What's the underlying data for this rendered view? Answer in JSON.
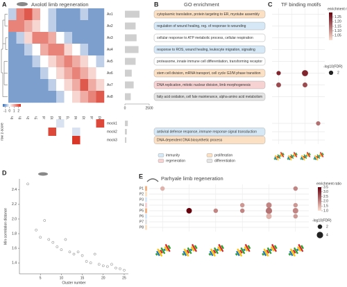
{
  "panels": [
    "A",
    "B",
    "C",
    "D",
    "E"
  ],
  "go_enrichment": {
    "title": "GO enrichment",
    "legend": [
      {
        "name": "immunity",
        "color": "#d6e8f5"
      },
      {
        "name": "proliferation",
        "color": "#fbe0c4"
      },
      {
        "name": "regeneration",
        "color": "#f6d2d2"
      },
      {
        "name": "differentiation",
        "color": "#e4e4e4"
      }
    ],
    "terms": [
      {
        "text": "cytoplasmic translation, protein targeting to ER, myotube assembly",
        "category": "proliferation"
      },
      {
        "text": "regulation of wound healing, reg. of response to wounding",
        "category": "immunity"
      },
      {
        "text": "cellular response to ATP metabolic process, cellular respiration",
        "category": null
      },
      {
        "text": "response to ROS, wound healing, leukocyte migration, signaling",
        "category": "immunity"
      },
      {
        "text": "proteasome, innate immune cell differentiation, transforming receptor",
        "category": null
      },
      {
        "text": "stem cell division, mRNA transport, cell cycle G2/M phase transition",
        "category": "proliferation"
      },
      {
        "text": "DNA replication, mitotic nuclear division, limb morphogenesis",
        "category": "regeneration"
      },
      {
        "text": "fatty acid oxidation, cell fate maintenance, alpha-amino acid metabolism",
        "category": "differentiation"
      },
      {
        "text": "antiviral defense response, immune response signal transduction",
        "category": "immunity"
      },
      {
        "text": "DNA-dependent DNA biosynthetic process",
        "category": "proliferation"
      }
    ]
  },
  "chart_data": [
    {
      "type": "heatmap",
      "title": "Axolotl limb regeneration",
      "rows": [
        "Ax1",
        "Ax2",
        "Ax3",
        "Ax4",
        "Ax5",
        "Ax6",
        "Ax7",
        "Ax8"
      ],
      "columns": [
        "0h",
        "3h",
        "6h",
        "12h",
        "1d",
        "3d",
        "5d",
        "7d",
        "10d",
        "14d",
        "21d",
        "28d"
      ],
      "values": [
        [
          -0.5,
          1.5,
          2,
          1,
          0,
          -0.5,
          -1,
          -1,
          -1,
          -0.5,
          -1,
          -1
        ],
        [
          1.5,
          1.5,
          1,
          0.5,
          0,
          -0.5,
          -1,
          -1,
          -1,
          -1,
          -1,
          -1
        ],
        [
          -1,
          -0.5,
          0.5,
          1.5,
          1.5,
          1,
          0,
          -0.5,
          -1,
          -1,
          -1,
          -1
        ],
        [
          -1,
          -1,
          -0.5,
          0,
          1,
          1.5,
          1.5,
          0.5,
          0,
          -0.5,
          -1,
          -1
        ],
        [
          -1,
          -1,
          -1,
          -0.5,
          0,
          0.5,
          1,
          1.5,
          1,
          0.5,
          0,
          -0.5
        ],
        [
          -1,
          -1,
          -1,
          -1,
          -0.5,
          0,
          0.5,
          1,
          1.5,
          1,
          0.5,
          0
        ],
        [
          -1,
          -1,
          -1,
          -1,
          -1,
          -0.5,
          0,
          0.5,
          1,
          2,
          1,
          0.5
        ],
        [
          -1,
          -1,
          -1,
          -1,
          -1,
          -1,
          -0.5,
          0,
          0.5,
          1,
          1.5,
          2
        ]
      ],
      "clim": [
        -1.5,
        2.5
      ],
      "cticks": [
        -1,
        0,
        1,
        2
      ],
      "color_label": "row z-score"
    },
    {
      "type": "heatmap",
      "rows": [
        "mock1",
        "mock2",
        "mock3"
      ],
      "values": [
        [
          0,
          0,
          0,
          0,
          0,
          0,
          -0.3,
          0,
          0,
          0,
          0,
          2.2
        ],
        [
          0,
          0,
          0,
          0,
          0,
          2.2,
          0,
          0,
          -0.3,
          0,
          0,
          0
        ],
        [
          0,
          0,
          0,
          0,
          0,
          0,
          0,
          0,
          2.4,
          0,
          0,
          0
        ]
      ],
      "clim": [
        -1.5,
        2.5
      ]
    },
    {
      "type": "hbar",
      "values": [
        1500,
        1100,
        1200,
        1400,
        1100,
        700,
        900,
        600
      ],
      "color": "#cfcfcf",
      "xlim": [
        0,
        2500
      ],
      "xticks": [
        0,
        2500
      ]
    },
    {
      "type": "hbar",
      "values": [
        300,
        200,
        150
      ],
      "color": "#cfcfcf",
      "xlim": [
        0,
        2500
      ]
    },
    {
      "type": "dot",
      "title": "TF binding motifs",
      "rows": 11,
      "values": [
        [
          null,
          null,
          null,
          null
        ],
        [
          null,
          null,
          null,
          null
        ],
        [
          null,
          null,
          null,
          null
        ],
        [
          null,
          null,
          null,
          null
        ],
        [
          null,
          null,
          null,
          null
        ],
        [
          1.25,
          null,
          1.25,
          null
        ],
        [
          1.2,
          null,
          1.2,
          null
        ],
        [
          null,
          null,
          null,
          null
        ],
        [
          null,
          null,
          null,
          1.15
        ],
        [
          null,
          null,
          null,
          null
        ],
        [
          null,
          null,
          null,
          null
        ]
      ],
      "sizes": [
        [
          null,
          null,
          null,
          null
        ],
        [
          null,
          null,
          null,
          null
        ],
        [
          null,
          null,
          null,
          null
        ],
        [
          null,
          null,
          null,
          null
        ],
        [
          null,
          null,
          null,
          null
        ],
        [
          2,
          null,
          4,
          null
        ],
        [
          2.5,
          null,
          2.5,
          null
        ],
        [
          null,
          null,
          null,
          null
        ],
        [
          null,
          null,
          null,
          2
        ],
        [
          null,
          null,
          null,
          null
        ],
        [
          null,
          null,
          null,
          null
        ]
      ],
      "clim": [
        1.0,
        1.3
      ],
      "cticks": [
        1.05,
        {
          "value": 1.1,
          "label": "1.10"
        },
        1.15,
        {
          "value": 1.2,
          "label": "1.20"
        },
        1.25
      ],
      "color_label": "enrichment ratio",
      "size_label": "-log10(FDR)",
      "size_ticks": [
        2
      ]
    },
    {
      "type": "scatter",
      "x": [
        2,
        4,
        5,
        6,
        7,
        8,
        9,
        10,
        11,
        12,
        13,
        14,
        15,
        16,
        17,
        18,
        19,
        20,
        21,
        22,
        23,
        24,
        25
      ],
      "values": [
        2.48,
        1.85,
        1.75,
        1.98,
        1.72,
        1.68,
        1.62,
        1.58,
        1.72,
        1.55,
        1.52,
        1.55,
        1.5,
        1.42,
        1.4,
        1.52,
        1.38,
        1.36,
        1.35,
        1.38,
        1.33,
        1.32,
        1.3
      ],
      "xlim": [
        0,
        26
      ],
      "xticks": [
        5,
        10,
        15,
        20,
        25
      ],
      "ylim": [
        1.25,
        2.55
      ],
      "yticks": [
        1.4,
        1.6,
        1.8,
        {
          "value": 2,
          "label": "2.0"
        },
        2.2,
        2.4
      ],
      "xlabel": "Cluster number",
      "ylabel": "Min correlation distance",
      "color": "#777777"
    },
    {
      "type": "dot",
      "title": "Parhyale limb regeneration",
      "rows": [
        "P1",
        "P2",
        "P3",
        "P4",
        "P5",
        "P6",
        "P7",
        "P8"
      ],
      "values": [
        [
          1.5,
          null,
          null,
          null,
          null,
          2
        ],
        [
          null,
          null,
          null,
          null,
          null,
          null
        ],
        [
          null,
          null,
          null,
          null,
          null,
          null
        ],
        [
          null,
          null,
          null,
          1.8,
          2,
          1.8
        ],
        [
          null,
          3.5,
          2,
          2,
          2.2,
          2
        ],
        [
          null,
          null,
          null,
          null,
          1.5,
          1.8
        ],
        [
          null,
          null,
          null,
          null,
          null,
          null
        ],
        [
          null,
          null,
          null,
          null,
          null,
          null
        ]
      ],
      "sizes": [
        [
          2,
          null,
          null,
          null,
          null,
          2
        ],
        [
          null,
          null,
          null,
          null,
          null,
          null
        ],
        [
          null,
          null,
          null,
          null,
          null,
          null
        ],
        [
          null,
          null,
          null,
          2,
          3,
          2
        ],
        [
          null,
          3,
          2,
          2,
          4,
          3
        ],
        [
          null,
          null,
          null,
          null,
          3,
          2
        ],
        [
          null,
          null,
          null,
          null,
          null,
          null
        ],
        [
          null,
          null,
          null,
          null,
          null,
          null
        ]
      ],
      "clim": [
        1.0,
        3.5
      ],
      "cticks": [
        {
          "value": 1,
          "label": "1.0"
        },
        1.5,
        {
          "value": 2,
          "label": "2.0"
        },
        2.5,
        {
          "value": 3,
          "label": "3.0"
        },
        3.5
      ],
      "color_label": "enrichment ratio",
      "size_label": "-log10(FDR)",
      "size_ticks": [
        2,
        4
      ]
    }
  ]
}
